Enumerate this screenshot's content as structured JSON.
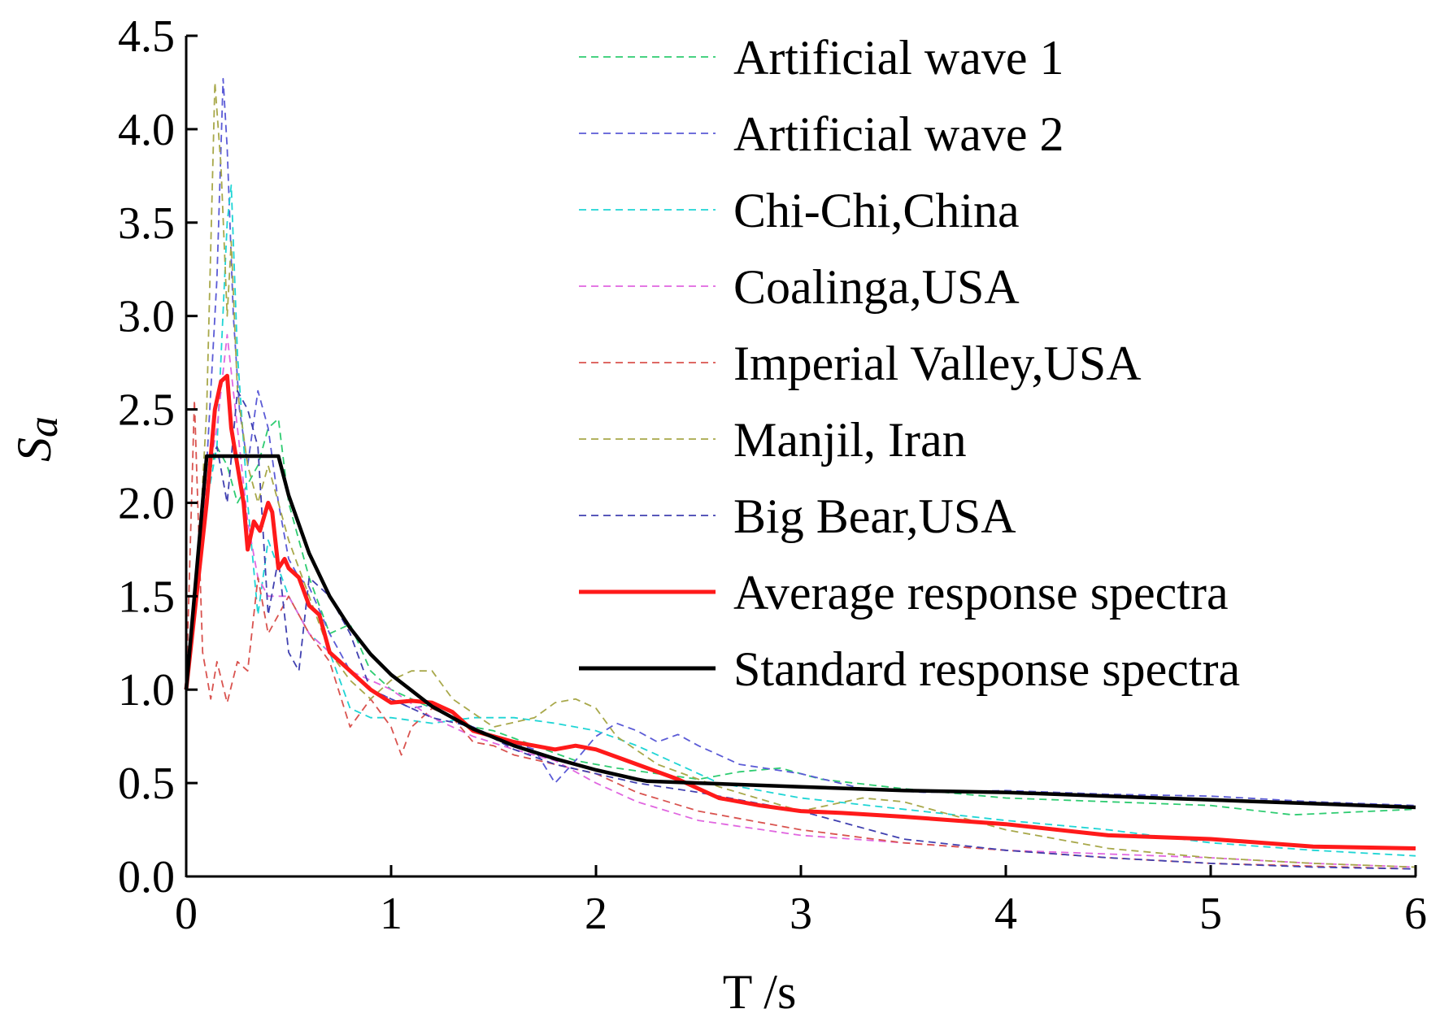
{
  "chart_data": {
    "type": "line",
    "title": "",
    "xlabel": "T /s",
    "ylabel": "Sa",
    "ylabel_base": "S",
    "ylabel_sub": "a",
    "xlim": [
      0,
      6
    ],
    "ylim": [
      0,
      4.5
    ],
    "x_ticks": [
      0,
      1,
      2,
      3,
      4,
      5,
      6
    ],
    "x_tick_labels": [
      "0",
      "1",
      "2",
      "3",
      "4",
      "5",
      "6"
    ],
    "y_ticks": [
      0,
      0.5,
      1,
      1.5,
      2,
      2.5,
      3,
      3.5,
      4,
      4.5
    ],
    "y_tick_labels": [
      "0.0",
      "0.5",
      "1.0",
      "1.5",
      "2.0",
      "2.5",
      "3.0",
      "3.5",
      "4.0",
      "4.5"
    ],
    "grid": false,
    "legend_position": "top-right",
    "series": [
      {
        "name": "Artificial wave 1",
        "color": "#2ecc71",
        "style": "dashed",
        "x": [
          0,
          0.05,
          0.1,
          0.15,
          0.2,
          0.25,
          0.3,
          0.35,
          0.4,
          0.45,
          0.5,
          0.6,
          0.7,
          0.8,
          0.9,
          1.0,
          1.1,
          1.2,
          1.3,
          1.4,
          1.5,
          1.7,
          1.9,
          2.1,
          2.3,
          2.5,
          2.7,
          2.9,
          3.1,
          3.5,
          4.0,
          4.5,
          5.0,
          5.4,
          6.0
        ],
        "values": [
          1.0,
          1.6,
          2.1,
          2.3,
          2.2,
          2.0,
          2.1,
          2.2,
          2.4,
          2.45,
          2.0,
          1.6,
          1.3,
          1.35,
          1.1,
          1.0,
          0.95,
          0.9,
          0.85,
          0.8,
          0.78,
          0.7,
          0.62,
          0.58,
          0.55,
          0.52,
          0.56,
          0.58,
          0.52,
          0.47,
          0.42,
          0.4,
          0.38,
          0.33,
          0.36
        ]
      },
      {
        "name": "Artificial wave 2",
        "color": "#5b5bd6",
        "style": "dashed",
        "x": [
          0,
          0.05,
          0.1,
          0.15,
          0.18,
          0.2,
          0.23,
          0.26,
          0.3,
          0.35,
          0.4,
          0.45,
          0.5,
          0.55,
          0.6,
          0.7,
          0.8,
          0.9,
          1.0,
          1.1,
          1.2,
          1.3,
          1.5,
          1.7,
          1.8,
          1.9,
          2.0,
          2.1,
          2.2,
          2.3,
          2.4,
          2.5,
          2.7,
          3.0,
          3.3,
          3.6,
          4.0,
          4.5,
          5.0,
          5.5,
          6.0
        ],
        "values": [
          1.0,
          1.5,
          2.2,
          3.2,
          4.27,
          3.9,
          3.0,
          2.5,
          2.2,
          2.6,
          2.4,
          2.0,
          1.7,
          1.6,
          1.55,
          1.3,
          1.1,
          1.0,
          0.95,
          0.9,
          0.92,
          0.85,
          0.75,
          0.68,
          0.5,
          0.62,
          0.75,
          0.82,
          0.78,
          0.72,
          0.76,
          0.7,
          0.6,
          0.55,
          0.47,
          0.45,
          0.46,
          0.44,
          0.43,
          0.4,
          0.38
        ]
      },
      {
        "name": "Chi-Chi,China",
        "color": "#1fd5d5",
        "style": "dashed",
        "x": [
          0,
          0.05,
          0.1,
          0.15,
          0.2,
          0.22,
          0.25,
          0.3,
          0.35,
          0.4,
          0.5,
          0.6,
          0.7,
          0.8,
          0.9,
          1.0,
          1.2,
          1.4,
          1.6,
          1.8,
          2.0,
          2.2,
          2.4,
          2.6,
          3.0,
          3.5,
          4.0,
          4.5,
          5.0,
          5.5,
          6.0
        ],
        "values": [
          1.0,
          1.5,
          2.0,
          2.3,
          3.5,
          3.7,
          2.8,
          2.0,
          1.4,
          1.8,
          1.5,
          1.3,
          1.2,
          0.9,
          0.85,
          0.85,
          0.82,
          0.85,
          0.85,
          0.82,
          0.78,
          0.7,
          0.6,
          0.5,
          0.42,
          0.36,
          0.3,
          0.25,
          0.18,
          0.14,
          0.11
        ]
      },
      {
        "name": "Coalinga,USA",
        "color": "#e066e0",
        "style": "dashed",
        "x": [
          0,
          0.05,
          0.1,
          0.15,
          0.2,
          0.25,
          0.3,
          0.35,
          0.4,
          0.5,
          0.6,
          0.7,
          0.8,
          0.9,
          1.0,
          1.2,
          1.4,
          1.6,
          1.8,
          2.0,
          2.2,
          2.5,
          3.0,
          3.5,
          4.0,
          4.5,
          5.0,
          5.5,
          6.0
        ],
        "values": [
          1.0,
          1.5,
          2.1,
          2.4,
          2.9,
          2.4,
          1.9,
          1.6,
          1.5,
          1.5,
          1.3,
          1.2,
          1.1,
          1.05,
          1.0,
          0.85,
          0.75,
          0.68,
          0.62,
          0.5,
          0.4,
          0.3,
          0.22,
          0.18,
          0.14,
          0.12,
          0.1,
          0.07,
          0.05
        ]
      },
      {
        "name": "Imperial Valley,USA",
        "color": "#d9534f",
        "style": "dashed",
        "x": [
          0,
          0.04,
          0.08,
          0.12,
          0.15,
          0.2,
          0.25,
          0.3,
          0.35,
          0.4,
          0.5,
          0.6,
          0.7,
          0.8,
          0.9,
          1.0,
          1.05,
          1.1,
          1.2,
          1.3,
          1.4,
          1.5,
          1.6,
          1.8,
          2.0,
          2.2,
          2.5,
          3.0,
          3.5,
          4.0,
          4.5,
          5.0,
          6.0
        ],
        "values": [
          1.0,
          2.55,
          1.2,
          0.95,
          1.15,
          0.93,
          1.15,
          1.1,
          1.6,
          1.3,
          1.5,
          1.3,
          1.15,
          0.8,
          0.95,
          0.8,
          0.65,
          0.8,
          0.9,
          0.85,
          0.72,
          0.7,
          0.65,
          0.6,
          0.55,
          0.45,
          0.35,
          0.25,
          0.18,
          0.14,
          0.1,
          0.07,
          0.04
        ]
      },
      {
        "name": "Manjil, Iran",
        "color": "#a8a84a",
        "style": "dashed",
        "x": [
          0,
          0.05,
          0.1,
          0.14,
          0.17,
          0.2,
          0.22,
          0.25,
          0.3,
          0.35,
          0.4,
          0.45,
          0.5,
          0.6,
          0.7,
          0.8,
          0.9,
          1.0,
          1.1,
          1.2,
          1.3,
          1.5,
          1.7,
          1.8,
          1.9,
          2.0,
          2.1,
          2.3,
          2.6,
          3.0,
          3.3,
          3.5,
          4.0,
          4.5,
          5.0,
          5.5,
          6.0
        ],
        "values": [
          1.0,
          1.5,
          2.5,
          4.25,
          3.8,
          3.0,
          3.4,
          2.6,
          2.2,
          2.0,
          2.2,
          2.0,
          1.8,
          1.5,
          1.2,
          1.05,
          0.95,
          1.05,
          1.1,
          1.1,
          0.95,
          0.8,
          0.85,
          0.93,
          0.95,
          0.9,
          0.75,
          0.6,
          0.48,
          0.35,
          0.42,
          0.4,
          0.25,
          0.15,
          0.1,
          0.07,
          0.05
        ]
      },
      {
        "name": "Big Bear,USA",
        "color": "#4040b0",
        "style": "dashed",
        "x": [
          0,
          0.05,
          0.1,
          0.15,
          0.2,
          0.25,
          0.3,
          0.35,
          0.4,
          0.45,
          0.5,
          0.55,
          0.6,
          0.7,
          0.8,
          0.9,
          1.0,
          1.1,
          1.2,
          1.4,
          1.6,
          1.8,
          2.0,
          2.2,
          2.5,
          3.0,
          3.5,
          4.0,
          4.5,
          5.0,
          5.5,
          6.0
        ],
        "values": [
          1.0,
          1.6,
          2.2,
          2.3,
          2.0,
          2.6,
          2.5,
          2.3,
          1.4,
          1.7,
          1.2,
          1.1,
          1.6,
          1.5,
          1.3,
          1.0,
          0.95,
          0.9,
          0.85,
          0.8,
          0.68,
          0.6,
          0.55,
          0.5,
          0.45,
          0.35,
          0.2,
          0.14,
          0.1,
          0.07,
          0.05,
          0.04
        ]
      },
      {
        "name": "Average response spectra",
        "color": "#ff1a1a",
        "style": "solid",
        "x": [
          0,
          0.05,
          0.1,
          0.14,
          0.17,
          0.2,
          0.22,
          0.25,
          0.28,
          0.3,
          0.33,
          0.36,
          0.4,
          0.42,
          0.45,
          0.48,
          0.5,
          0.55,
          0.6,
          0.65,
          0.7,
          0.8,
          0.9,
          1.0,
          1.1,
          1.2,
          1.3,
          1.4,
          1.5,
          1.6,
          1.7,
          1.8,
          1.9,
          2.0,
          2.2,
          2.4,
          2.6,
          2.8,
          3.0,
          3.2,
          3.5,
          4.0,
          4.5,
          5.0,
          5.5,
          6.0
        ],
        "values": [
          1.0,
          1.5,
          2.0,
          2.5,
          2.65,
          2.68,
          2.4,
          2.2,
          2.0,
          1.75,
          1.9,
          1.85,
          2.0,
          1.95,
          1.65,
          1.7,
          1.65,
          1.6,
          1.45,
          1.4,
          1.2,
          1.1,
          1.0,
          0.93,
          0.94,
          0.93,
          0.88,
          0.78,
          0.75,
          0.72,
          0.7,
          0.68,
          0.7,
          0.68,
          0.6,
          0.52,
          0.42,
          0.38,
          0.35,
          0.34,
          0.32,
          0.28,
          0.22,
          0.2,
          0.16,
          0.15
        ]
      },
      {
        "name": "Standard response spectra",
        "color": "#000000",
        "style": "solid",
        "x": [
          0,
          0.1,
          0.45,
          0.5,
          0.6,
          0.7,
          0.8,
          0.9,
          1.0,
          1.2,
          1.4,
          1.6,
          1.8,
          2.0,
          2.2,
          2.25,
          2.5,
          3.0,
          3.5,
          4.0,
          4.5,
          5.0,
          5.5,
          6.0
        ],
        "values": [
          1.0,
          2.25,
          2.25,
          2.04,
          1.73,
          1.5,
          1.33,
          1.19,
          1.08,
          0.91,
          0.79,
          0.7,
          0.63,
          0.57,
          0.52,
          0.51,
          0.5,
          0.48,
          0.46,
          0.45,
          0.43,
          0.41,
          0.39,
          0.37
        ]
      }
    ]
  }
}
